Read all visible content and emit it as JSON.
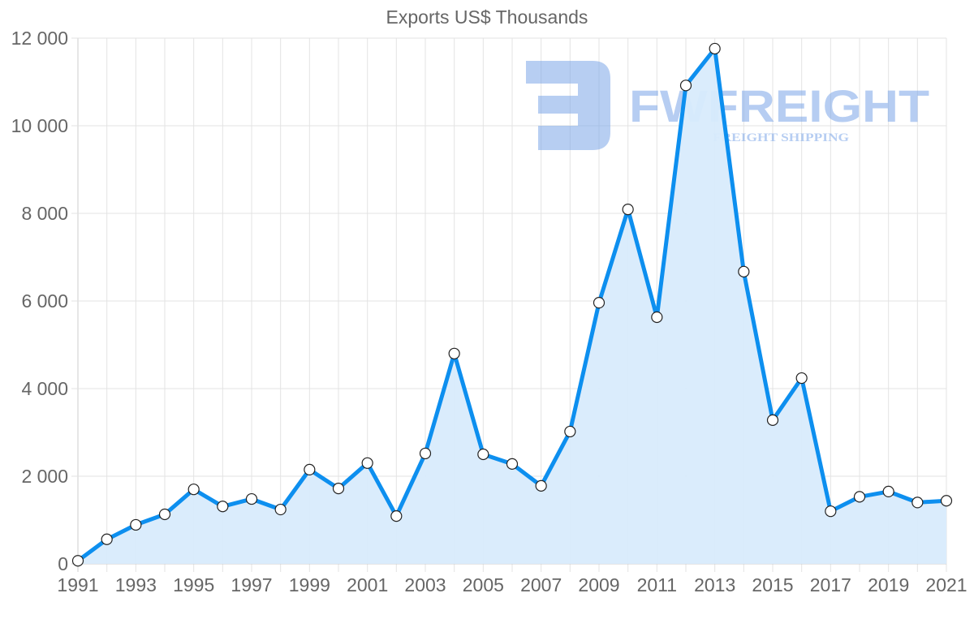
{
  "chart_data": {
    "type": "area",
    "title": "Exports US$ Thousands",
    "xlabel": "",
    "ylabel": "",
    "ylim": [
      0,
      12000
    ],
    "grid": true,
    "legend": null,
    "y_ticks": [
      "0",
      "2 000",
      "4 000",
      "6 000",
      "8 000",
      "10 000",
      "12 000"
    ],
    "x_tick_labels": [
      "1991",
      "1993",
      "1995",
      "1997",
      "1999",
      "2001",
      "2003",
      "2005",
      "2007",
      "2009",
      "2011",
      "2013",
      "2015",
      "2017",
      "2019",
      "2021"
    ],
    "x": [
      1991,
      1992,
      1993,
      1994,
      1995,
      1996,
      1997,
      1998,
      1999,
      2000,
      2001,
      2002,
      2003,
      2004,
      2005,
      2006,
      2007,
      2008,
      2009,
      2010,
      2011,
      2012,
      2013,
      2014,
      2015,
      2016,
      2017,
      2018,
      2019,
      2020,
      2021
    ],
    "series": [
      {
        "name": "Exports",
        "color": "#0d8fef",
        "fill": "#d8ebfc",
        "values": [
          70,
          560,
          890,
          1130,
          1700,
          1310,
          1480,
          1240,
          2150,
          1720,
          2300,
          1090,
          2520,
          4800,
          2500,
          2280,
          1780,
          3020,
          5960,
          8090,
          5630,
          10920,
          11760,
          6670,
          3280,
          4240,
          1200,
          1530,
          1650,
          1400,
          1440
        ]
      }
    ]
  },
  "watermark": {
    "brand": "FWFREIGHT",
    "tagline": "FREIGHT SHIPPING",
    "color": "#7ba6e8"
  }
}
